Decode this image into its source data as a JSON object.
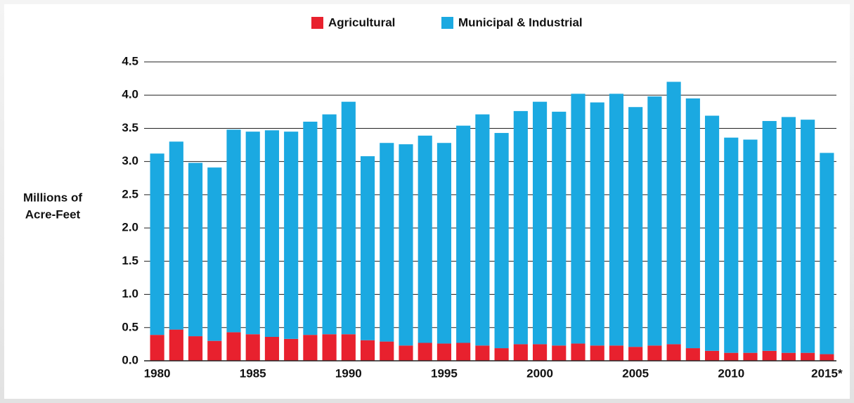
{
  "chart_data": {
    "type": "stacked-bar",
    "y_axis_label": [
      "Millions of",
      "Acre-Feet"
    ],
    "categories": [
      "1980",
      null,
      null,
      null,
      null,
      "1985",
      null,
      null,
      null,
      null,
      "1990",
      null,
      null,
      null,
      null,
      "1995",
      null,
      null,
      null,
      null,
      "2000",
      null,
      null,
      null,
      null,
      "2005",
      null,
      null,
      null,
      null,
      "2010",
      null,
      null,
      null,
      null,
      "2015*"
    ],
    "series": [
      {
        "name": "Agricultural",
        "color": "#e8212e",
        "values": [
          0.39,
          0.47,
          0.37,
          0.3,
          0.43,
          0.4,
          0.36,
          0.33,
          0.39,
          0.4,
          0.4,
          0.31,
          0.29,
          0.23,
          0.27,
          0.26,
          0.27,
          0.23,
          0.19,
          0.25,
          0.25,
          0.23,
          0.26,
          0.23,
          0.23,
          0.21,
          0.23,
          0.25,
          0.19,
          0.15,
          0.12,
          0.12,
          0.15,
          0.12,
          0.12,
          0.1
        ]
      },
      {
        "name": "Municipal & Industrial",
        "color": "#1ba9e1",
        "values": [
          2.73,
          2.83,
          2.61,
          2.61,
          3.05,
          3.05,
          3.11,
          3.12,
          3.21,
          3.31,
          3.5,
          2.77,
          2.99,
          3.03,
          3.12,
          3.02,
          3.27,
          3.48,
          3.24,
          3.51,
          3.65,
          3.52,
          3.76,
          3.66,
          3.79,
          3.61,
          3.75,
          3.95,
          3.76,
          3.54,
          3.24,
          3.21,
          3.46,
          3.55,
          3.51,
          3.03
        ]
      }
    ],
    "ylim": [
      0,
      4.5
    ],
    "yticks": [
      {
        "value": 0,
        "label": "0.0"
      },
      0.5,
      {
        "value": 1,
        "label": "1.0"
      },
      1.5,
      {
        "value": 2,
        "label": "2.0"
      },
      2.5,
      {
        "value": 3,
        "label": "3.0"
      },
      3.5,
      {
        "value": 4,
        "label": "4.0"
      },
      4.5
    ],
    "grid": true,
    "legend": "top"
  }
}
